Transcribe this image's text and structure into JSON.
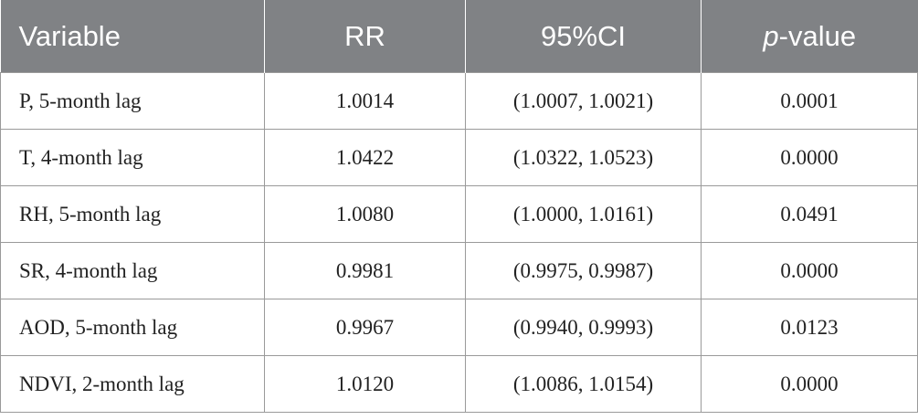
{
  "table": {
    "headers": {
      "variable": "Variable",
      "rr": "RR",
      "ci": "95%CI",
      "p_italic": "p",
      "p_rest": "-value"
    },
    "rows": [
      {
        "variable": "P, 5-month lag",
        "rr": "1.0014",
        "ci": "(1.0007, 1.0021)",
        "p": "0.0001"
      },
      {
        "variable": "T, 4-month lag",
        "rr": "1.0422",
        "ci": "(1.0322, 1.0523)",
        "p": "0.0000"
      },
      {
        "variable": "RH, 5-month lag",
        "rr": "1.0080",
        "ci": "(1.0000, 1.0161)",
        "p": "0.0491"
      },
      {
        "variable": "SR, 4-month lag",
        "rr": "0.9981",
        "ci": "(0.9975, 0.9987)",
        "p": "0.0000"
      },
      {
        "variable": "AOD, 5-month lag",
        "rr": "0.9967",
        "ci": "(0.9940, 0.9993)",
        "p": "0.0123"
      },
      {
        "variable": "NDVI, 2-month lag",
        "rr": "1.0120",
        "ci": "(1.0086, 1.0154)",
        "p": "0.0000"
      }
    ]
  },
  "colors": {
    "header_background": "#808285",
    "header_text": "#ffffff",
    "border": "#9a9a9a"
  }
}
